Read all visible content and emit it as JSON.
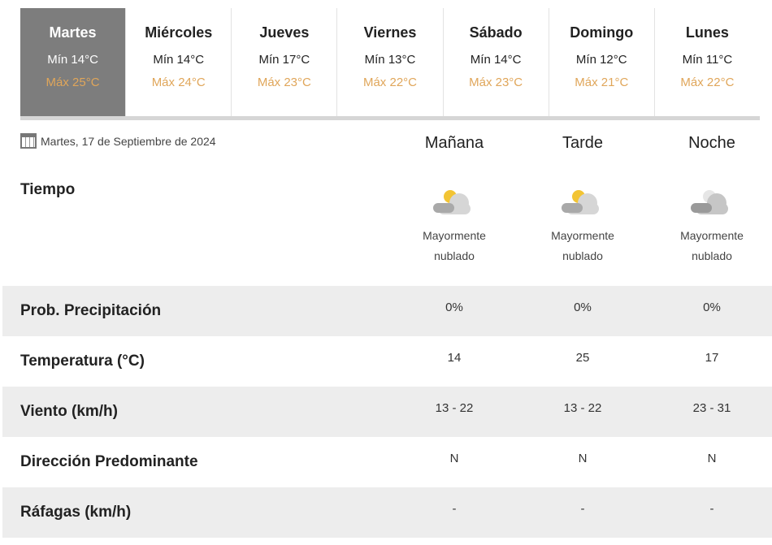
{
  "days": [
    {
      "name": "Martes",
      "min": "Mín 14°C",
      "max": "Máx 25°C",
      "active": true
    },
    {
      "name": "Miércoles",
      "min": "Mín 14°C",
      "max": "Máx 24°C"
    },
    {
      "name": "Jueves",
      "min": "Mín 17°C",
      "max": "Máx 23°C"
    },
    {
      "name": "Viernes",
      "min": "Mín 13°C",
      "max": "Máx 22°C"
    },
    {
      "name": "Sábado",
      "min": "Mín 14°C",
      "max": "Máx 23°C"
    },
    {
      "name": "Domingo",
      "min": "Mín 12°C",
      "max": "Máx 21°C"
    },
    {
      "name": "Lunes",
      "min": "Mín 11°C",
      "max": "Máx 22°C"
    }
  ],
  "date": "Martes, 17 de Septiembre de 2024",
  "columns": [
    "Mañana",
    "Tarde",
    "Noche"
  ],
  "tiempo_label": "Tiempo",
  "weather": [
    {
      "icon": "partly-cloudy-day-icon",
      "line1": "Mayormente",
      "line2": "nublado"
    },
    {
      "icon": "partly-cloudy-day-icon",
      "line1": "Mayormente",
      "line2": "nublado"
    },
    {
      "icon": "cloudy-night-icon",
      "line1": "Mayormente",
      "line2": "nublado"
    }
  ],
  "rows": [
    {
      "label": "Prob. Precipitación",
      "values": [
        "0%",
        "0%",
        "0%"
      ]
    },
    {
      "label": "Temperatura (°C)",
      "values": [
        "14",
        "25",
        "17"
      ]
    },
    {
      "label": "Viento (km/h)",
      "values": [
        "13 - 22",
        "13 - 22",
        "23 - 31"
      ]
    },
    {
      "label": "Dirección Predominante",
      "values": [
        "N",
        "N",
        "N"
      ]
    },
    {
      "label": "Ráfagas (km/h)",
      "values": [
        "-",
        "-",
        "-"
      ]
    }
  ],
  "colors": {
    "active_tab": "#7d7d7d",
    "max_temp": "#e0a65a",
    "row_alt": "#ededed"
  }
}
